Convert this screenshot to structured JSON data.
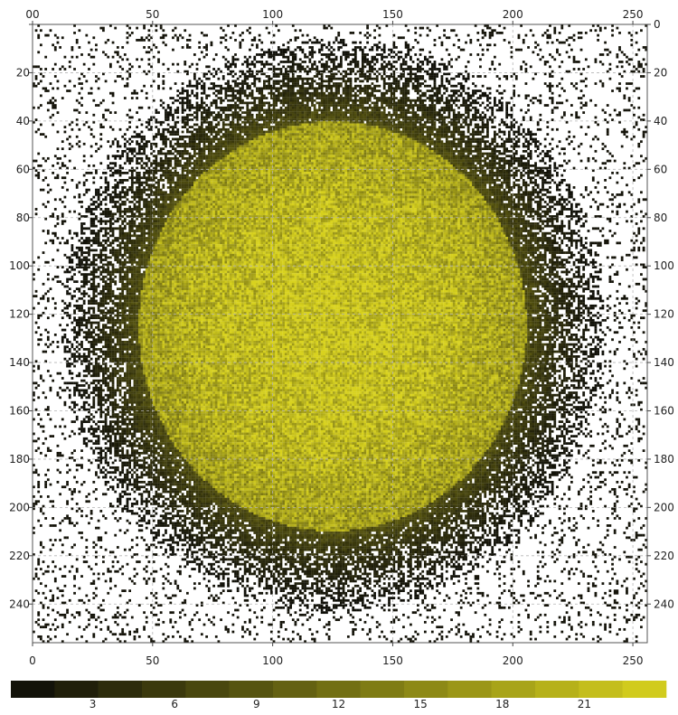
{
  "chart_data": {
    "type": "heatmap",
    "title": "",
    "xlabel": "",
    "ylabel": "",
    "grid_size": [
      256,
      256
    ],
    "xlim": [
      0,
      256
    ],
    "ylim": [
      0,
      256
    ],
    "y_inverted": true,
    "grid": true,
    "x_ticks": [
      0,
      50,
      100,
      150,
      200,
      250
    ],
    "y_ticks": [
      0,
      20,
      40,
      60,
      80,
      100,
      120,
      140,
      160,
      180,
      200,
      220,
      240
    ],
    "top_x_tick_labels": [
      "00",
      "50",
      "100",
      "150",
      "200",
      "250"
    ],
    "bottom_x_tick_labels": [
      "0",
      "50",
      "100",
      "150",
      "200",
      "250"
    ],
    "left_y_tick_labels": [
      "",
      "20",
      "40",
      "60",
      "80",
      "100",
      "120",
      "140",
      "160",
      "180",
      "200",
      "220",
      "240"
    ],
    "right_y_tick_labels": [
      "0",
      "20",
      "40",
      "60",
      "80",
      "100",
      "120",
      "140",
      "160",
      "180",
      "200",
      "220",
      "240"
    ],
    "blob": {
      "center": [
        125,
        125
      ],
      "radius": [
        101,
        106
      ],
      "peak_value": 22,
      "background_sparse_value": 1
    },
    "colorbar": {
      "min": 0,
      "max": 24,
      "steps": 15,
      "ticks": [
        3,
        6,
        9,
        12,
        15,
        18,
        21
      ],
      "tick_labels": [
        "3",
        "6",
        "9",
        "12",
        "15",
        "18",
        "21"
      ],
      "color_low": "#0b0b08",
      "color_high": "#d8d21e"
    }
  }
}
